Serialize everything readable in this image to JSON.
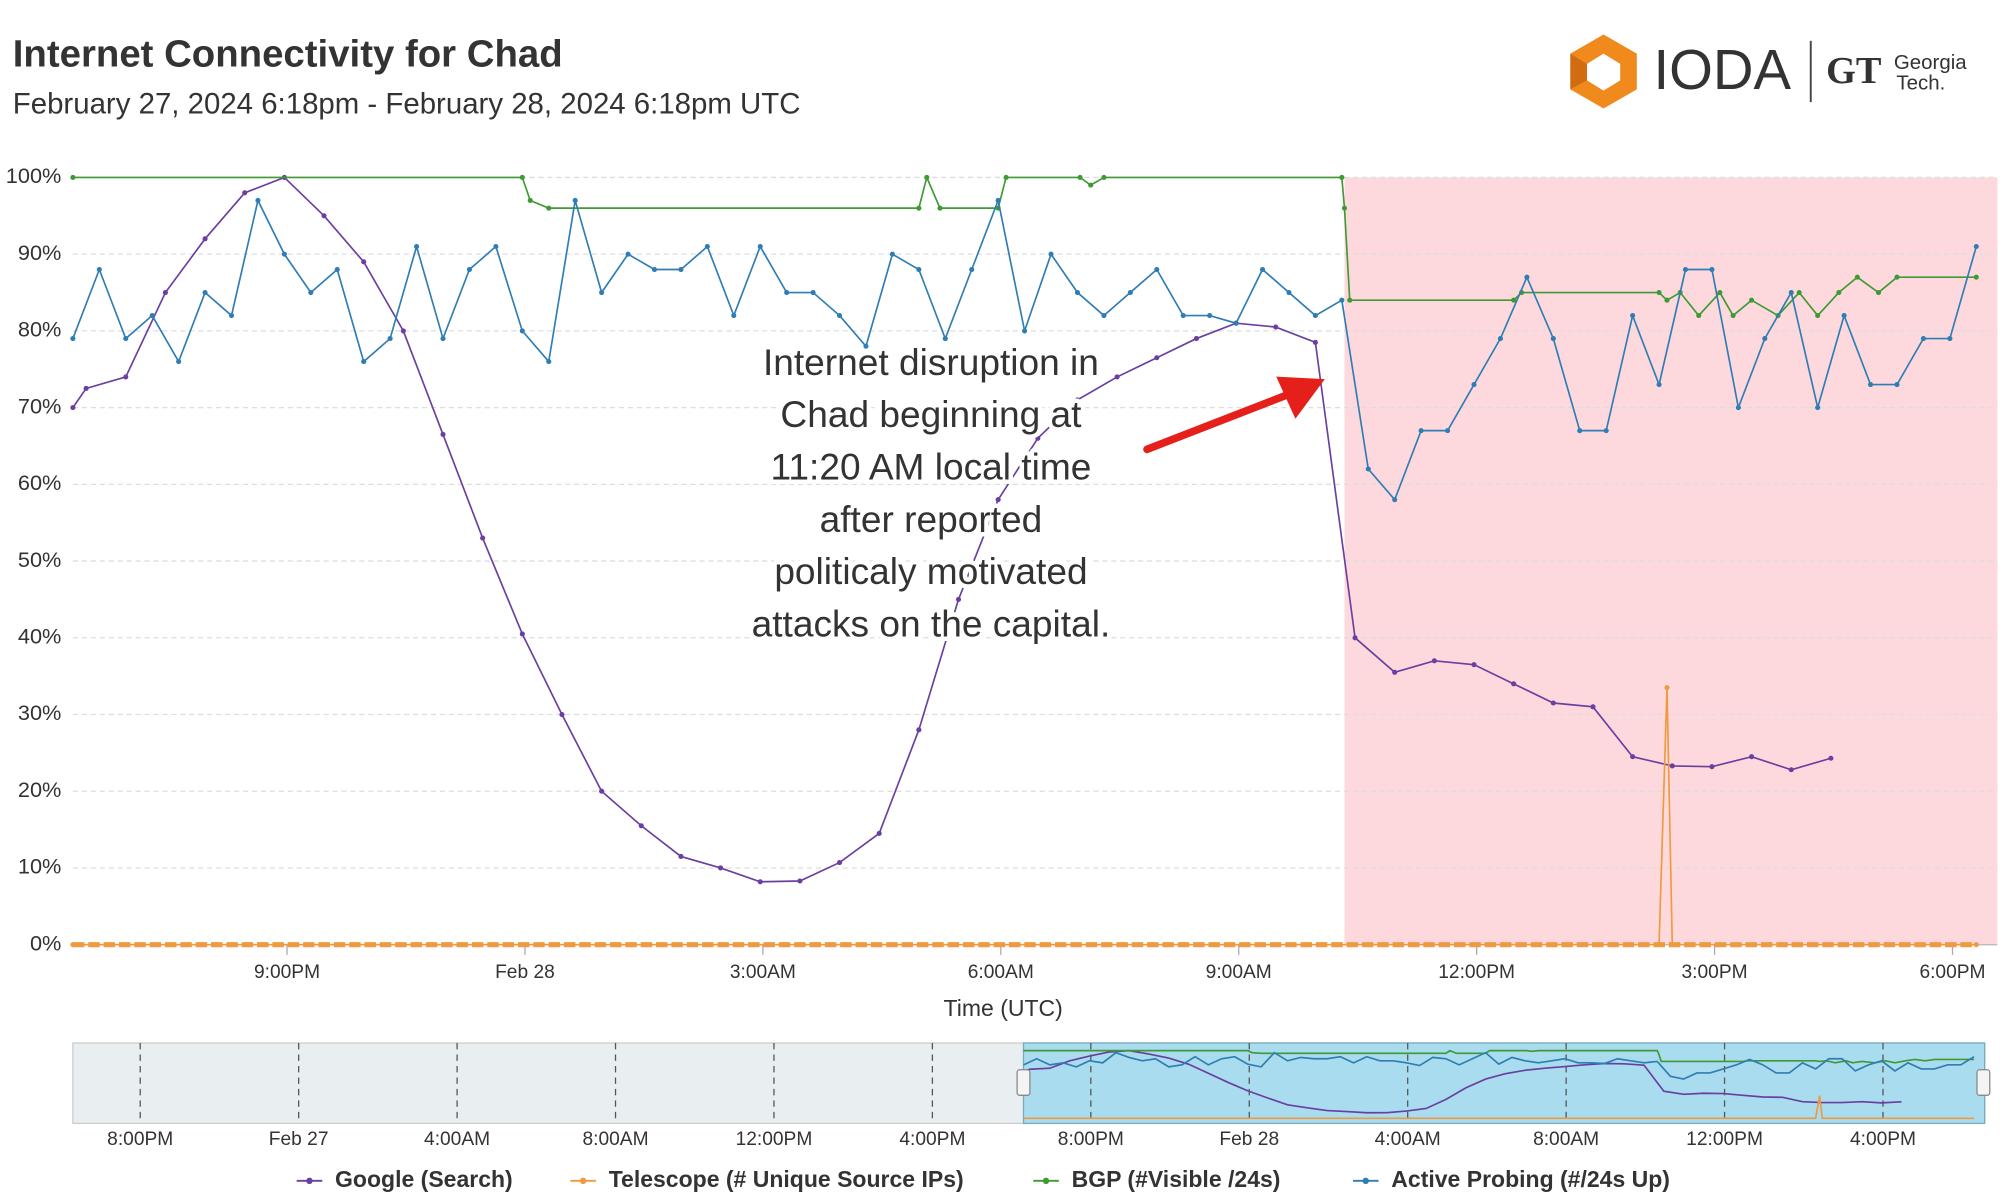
{
  "header": {
    "title": "Internet Connectivity for  Chad",
    "subtitle": "February 27, 2024 6:18pm - February 28, 2024 6:18pm UTC",
    "logo": "IODA",
    "partner_top": "Georgia",
    "partner_bottom": "Tech."
  },
  "chart_data": {
    "type": "line",
    "x_label": "Time (UTC)",
    "xlim": [
      "2024-02-27T18:18",
      "2024-02-28T18:34"
    ],
    "xticks": [
      {
        "value": "2024-02-27T21:00",
        "label": "9:00PM"
      },
      {
        "value": "2024-02-28T00:00",
        "label": "Feb 28"
      },
      {
        "value": "2024-02-28T03:00",
        "label": "3:00AM"
      },
      {
        "value": "2024-02-28T06:00",
        "label": "6:00AM"
      },
      {
        "value": "2024-02-28T09:00",
        "label": "9:00AM"
      },
      {
        "value": "2024-02-28T12:00",
        "label": "12:00PM"
      },
      {
        "value": "2024-02-28T15:00",
        "label": "3:00PM"
      },
      {
        "value": "2024-02-28T18:00",
        "label": "6:00PM"
      }
    ],
    "ylim": [
      0,
      100
    ],
    "yticks": [
      {
        "value": 0,
        "label": "0%"
      },
      {
        "value": 10,
        "label": "10%"
      },
      {
        "value": 20,
        "label": "20%"
      },
      {
        "value": 30,
        "label": "30%"
      },
      {
        "value": 40,
        "label": "40%"
      },
      {
        "value": 50,
        "label": "50%"
      },
      {
        "value": 60,
        "label": "60%"
      },
      {
        "value": 70,
        "label": "70%"
      },
      {
        "value": 80,
        "label": "80%"
      },
      {
        "value": 90,
        "label": "90%"
      },
      {
        "value": 100,
        "label": "100%"
      }
    ],
    "grid": true,
    "highlight": {
      "x": [
        "2024-02-28T10:20",
        "2024-02-28T18:34"
      ],
      "color": "#fdd9de"
    },
    "annotation": {
      "lines": [
        "Internet disruption in",
        "Chad beginning at",
        "11:20 AM local time",
        "after reported",
        "politicaly motivated",
        "attacks on the capital."
      ],
      "color": "#e5201b"
    },
    "series": [
      {
        "name": "Google (Search)",
        "color": "#6a3fa0",
        "x": [
          "2024-02-27T18:18",
          "2024-02-27T18:28",
          "2024-02-27T18:58",
          "2024-02-27T19:28",
          "2024-02-27T19:58",
          "2024-02-27T20:28",
          "2024-02-27T20:58",
          "2024-02-27T21:28",
          "2024-02-27T21:58",
          "2024-02-27T22:28",
          "2024-02-27T22:58",
          "2024-02-27T23:28",
          "2024-02-27T23:58",
          "2024-02-28T00:28",
          "2024-02-28T00:58",
          "2024-02-28T01:28",
          "2024-02-28T01:58",
          "2024-02-28T02:28",
          "2024-02-28T02:58",
          "2024-02-28T03:28",
          "2024-02-28T03:58",
          "2024-02-28T04:28",
          "2024-02-28T04:58",
          "2024-02-28T05:28",
          "2024-02-28T05:58",
          "2024-02-28T06:28",
          "2024-02-28T06:58",
          "2024-02-28T07:28",
          "2024-02-28T07:58",
          "2024-02-28T08:28",
          "2024-02-28T08:58",
          "2024-02-28T09:28",
          "2024-02-28T09:58",
          "2024-02-28T10:28",
          "2024-02-28T10:58",
          "2024-02-28T11:28",
          "2024-02-28T11:58",
          "2024-02-28T12:28",
          "2024-02-28T12:58",
          "2024-02-28T13:28",
          "2024-02-28T13:58",
          "2024-02-28T14:28",
          "2024-02-28T14:58",
          "2024-02-28T15:28",
          "2024-02-28T15:58",
          "2024-02-28T16:28"
        ],
        "values": [
          70,
          72.5,
          74,
          85,
          92,
          98,
          100,
          95,
          89,
          80,
          66.5,
          53,
          40.5,
          30,
          20,
          15.5,
          11.5,
          10,
          8.2,
          8.3,
          10.7,
          14.5,
          28,
          45,
          58,
          66,
          71,
          74,
          76.5,
          79,
          81,
          80.5,
          78.5,
          40,
          35.5,
          37,
          36.5,
          34,
          31.5,
          31,
          24.5,
          23.3,
          23.2,
          24.5,
          22.8,
          24.3
        ]
      },
      {
        "name": "Telescope (# Unique Source IPs)",
        "color": "#ef9a3f",
        "x": [
          "2024-02-27T18:18",
          "2024-02-28T14:18",
          "2024-02-28T14:24",
          "2024-02-28T14:28",
          "2024-02-28T18:18"
        ],
        "values": [
          0,
          0,
          33.5,
          0,
          0
        ]
      },
      {
        "name": "BGP (#Visible /24s)",
        "color": "#3f9a34",
        "x": [
          "2024-02-27T18:18",
          "2024-02-27T23:58",
          "2024-02-28T00:04",
          "2024-02-28T00:18",
          "2024-02-28T04:58",
          "2024-02-28T05:04",
          "2024-02-28T05:14",
          "2024-02-28T05:58",
          "2024-02-28T06:04",
          "2024-02-28T07:00",
          "2024-02-28T07:08",
          "2024-02-28T07:18",
          "2024-02-28T10:18",
          "2024-02-28T10:20",
          "2024-02-28T10:24",
          "2024-02-28T12:28",
          "2024-02-28T12:34",
          "2024-02-28T14:18",
          "2024-02-28T14:24",
          "2024-02-28T14:34",
          "2024-02-28T14:48",
          "2024-02-28T15:04",
          "2024-02-28T15:14",
          "2024-02-28T15:28",
          "2024-02-28T15:48",
          "2024-02-28T16:04",
          "2024-02-28T16:18",
          "2024-02-28T16:34",
          "2024-02-28T16:48",
          "2024-02-28T17:04",
          "2024-02-28T17:18",
          "2024-02-28T18:18"
        ],
        "values": [
          100,
          100,
          97,
          96,
          96,
          100,
          96,
          96,
          100,
          100,
          99,
          100,
          100,
          96,
          84,
          84,
          85,
          85,
          84,
          85,
          82,
          85,
          82,
          84,
          82,
          85,
          82,
          85,
          87,
          85,
          87,
          87
        ]
      },
      {
        "name": "Active Probing (#/24s Up)",
        "color": "#2f7db3",
        "x": [
          "2024-02-27T18:18",
          "2024-02-27T18:38",
          "2024-02-27T18:58",
          "2024-02-27T19:18",
          "2024-02-27T19:38",
          "2024-02-27T19:58",
          "2024-02-27T20:18",
          "2024-02-27T20:38",
          "2024-02-27T20:58",
          "2024-02-27T21:18",
          "2024-02-27T21:38",
          "2024-02-27T21:58",
          "2024-02-27T22:18",
          "2024-02-27T22:38",
          "2024-02-27T22:58",
          "2024-02-27T23:18",
          "2024-02-27T23:38",
          "2024-02-27T23:58",
          "2024-02-28T00:18",
          "2024-02-28T00:38",
          "2024-02-28T00:58",
          "2024-02-28T01:18",
          "2024-02-28T01:38",
          "2024-02-28T01:58",
          "2024-02-28T02:18",
          "2024-02-28T02:38",
          "2024-02-28T02:58",
          "2024-02-28T03:18",
          "2024-02-28T03:38",
          "2024-02-28T03:58",
          "2024-02-28T04:18",
          "2024-02-28T04:38",
          "2024-02-28T04:58",
          "2024-02-28T05:18",
          "2024-02-28T05:38",
          "2024-02-28T05:58",
          "2024-02-28T06:18",
          "2024-02-28T06:38",
          "2024-02-28T06:58",
          "2024-02-28T07:18",
          "2024-02-28T07:38",
          "2024-02-28T07:58",
          "2024-02-28T08:18",
          "2024-02-28T08:38",
          "2024-02-28T08:58",
          "2024-02-28T09:18",
          "2024-02-28T09:38",
          "2024-02-28T09:58",
          "2024-02-28T10:18",
          "2024-02-28T10:38",
          "2024-02-28T10:58",
          "2024-02-28T11:18",
          "2024-02-28T11:38",
          "2024-02-28T11:58",
          "2024-02-28T12:18",
          "2024-02-28T12:38",
          "2024-02-28T12:58",
          "2024-02-28T13:18",
          "2024-02-28T13:38",
          "2024-02-28T13:58",
          "2024-02-28T14:18",
          "2024-02-28T14:38",
          "2024-02-28T14:58",
          "2024-02-28T15:18",
          "2024-02-28T15:38",
          "2024-02-28T15:58",
          "2024-02-28T16:18",
          "2024-02-28T16:38",
          "2024-02-28T16:58",
          "2024-02-28T17:18",
          "2024-02-28T17:38",
          "2024-02-28T17:58",
          "2024-02-28T18:18"
        ],
        "values": [
          79,
          88,
          79,
          82,
          76,
          85,
          82,
          97,
          90,
          85,
          88,
          76,
          79,
          91,
          79,
          88,
          91,
          80,
          76,
          97,
          85,
          90,
          88,
          88,
          91,
          82,
          91,
          85,
          85,
          82,
          78,
          90,
          88,
          79,
          88,
          97,
          80,
          90,
          85,
          82,
          85,
          88,
          82,
          82,
          81,
          88,
          85,
          82,
          84,
          62,
          58,
          67,
          67,
          73,
          79,
          87,
          79,
          67,
          67,
          82,
          73,
          88,
          88,
          70,
          79,
          85,
          70,
          82,
          73,
          73,
          79,
          79,
          91
        ]
      }
    ]
  },
  "navigator": {
    "xlim": [
      "2024-02-26T18:18",
      "2024-02-28T18:34"
    ],
    "selection": [
      "2024-02-27T18:18",
      "2024-02-28T18:34"
    ],
    "xticks": [
      {
        "value": "2024-02-26T20:00",
        "label": "8:00PM"
      },
      {
        "value": "2024-02-27T00:00",
        "label": "Feb 27"
      },
      {
        "value": "2024-02-27T04:00",
        "label": "4:00AM"
      },
      {
        "value": "2024-02-27T08:00",
        "label": "8:00AM"
      },
      {
        "value": "2024-02-27T12:00",
        "label": "12:00PM"
      },
      {
        "value": "2024-02-27T16:00",
        "label": "4:00PM"
      },
      {
        "value": "2024-02-27T20:00",
        "label": "8:00PM"
      },
      {
        "value": "2024-02-28T00:00",
        "label": "Feb 28"
      },
      {
        "value": "2024-02-28T04:00",
        "label": "4:00AM"
      },
      {
        "value": "2024-02-28T08:00",
        "label": "8:00AM"
      },
      {
        "value": "2024-02-28T12:00",
        "label": "12:00PM"
      },
      {
        "value": "2024-02-28T16:00",
        "label": "4:00PM"
      }
    ]
  }
}
